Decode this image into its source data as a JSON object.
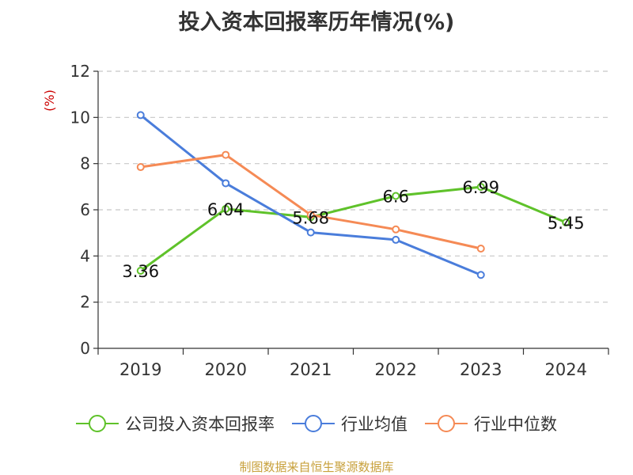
{
  "title": "投入资本回报率历年情况(%)",
  "source": "制图数据来自恒生聚源数据库",
  "colors": {
    "company": "#5fc22a",
    "industry_avg": "#4a7ddb",
    "industry_median": "#f58a55",
    "axis_unit": "#cc0000"
  },
  "chart_data": {
    "type": "line",
    "title": "投入资本回报率历年情况(%)",
    "ylabel": "(%)",
    "xlabel": "",
    "ylim": [
      0,
      12
    ],
    "yticks": [
      "0",
      "2",
      "4",
      "6",
      "8",
      "10",
      "12"
    ],
    "categories": [
      "2019",
      "2020",
      "2021",
      "2022",
      "2023",
      "2024"
    ],
    "grid": true,
    "legend_position": "bottom",
    "series": [
      {
        "name": "公司投入资本回报率",
        "values": [
          3.36,
          6.04,
          5.68,
          6.6,
          6.99,
          5.45
        ],
        "labels": [
          "3.36",
          "6.04",
          "5.68",
          "6.6",
          "6.99",
          "5.45"
        ],
        "color": "#5fc22a"
      },
      {
        "name": "行业均值",
        "values": [
          10.1,
          7.15,
          5.02,
          4.7,
          3.18,
          null
        ],
        "color": "#4a7ddb"
      },
      {
        "name": "行业中位数",
        "values": [
          7.85,
          8.38,
          5.78,
          5.15,
          4.32,
          null
        ],
        "color": "#f58a55"
      }
    ]
  }
}
